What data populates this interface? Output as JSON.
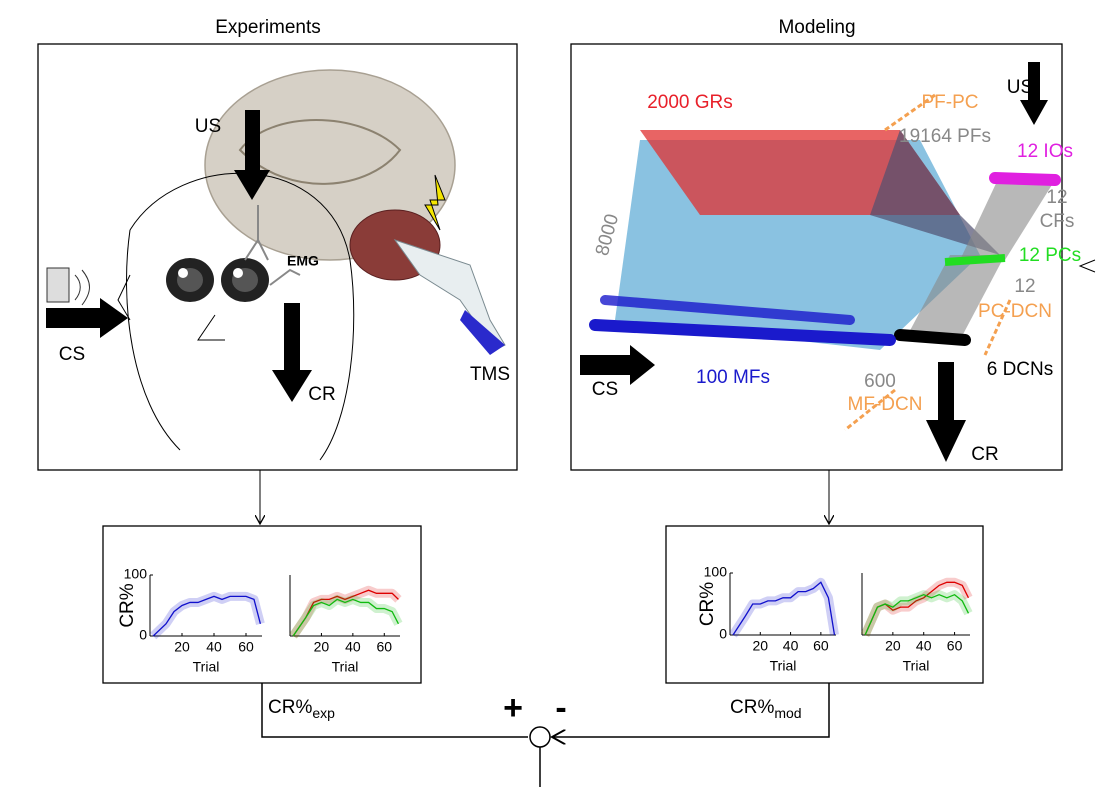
{
  "experiments": {
    "title": "Experiments",
    "us": "US",
    "cs": "CS",
    "cr": "CR",
    "emg": "EMG",
    "tms": "TMS"
  },
  "modeling": {
    "title": "Modeling",
    "labels": [
      {
        "text": "2000 GRs",
        "color": "#e8202a"
      },
      {
        "text": "PF-PC",
        "color": "#f4a050"
      },
      {
        "text": "US",
        "color": "#000000"
      },
      {
        "text": "19164 PFs",
        "color": "#888888"
      },
      {
        "text": "12 IOs",
        "color": "#e020e0"
      },
      {
        "text": "8000",
        "color": "#888888"
      },
      {
        "text": "12",
        "color": "#888888"
      },
      {
        "text": "CFs",
        "color": "#888888"
      },
      {
        "text": "12 PCs",
        "color": "#22dd22"
      },
      {
        "text": "12",
        "color": "#888888"
      },
      {
        "text": "PC-DCN",
        "color": "#f4a050"
      },
      {
        "text": "CS",
        "color": "#000000"
      },
      {
        "text": "100 MFs",
        "color": "#1a1acc"
      },
      {
        "text": "600",
        "color": "#888888"
      },
      {
        "text": "6 DCNs",
        "color": "#000000"
      },
      {
        "text": "MF-DCN",
        "color": "#f4a050"
      },
      {
        "text": "CR",
        "color": "#000000"
      }
    ]
  },
  "plots": [
    {
      "type": "line",
      "ylabel": "CR%",
      "xlabel": "Trial",
      "xlim": [
        0,
        70
      ],
      "ylim": [
        0,
        100
      ],
      "xticks": [
        20,
        40,
        60
      ],
      "yticks": [
        0,
        100
      ],
      "x": [
        2,
        10,
        15,
        20,
        25,
        30,
        35,
        40,
        45,
        50,
        55,
        60,
        65,
        69
      ],
      "series": [
        {
          "color": "#1010cc",
          "values": [
            0,
            20,
            40,
            50,
            55,
            55,
            60,
            65,
            60,
            65,
            65,
            65,
            60,
            20
          ]
        }
      ]
    },
    {
      "type": "line",
      "xlabel": "Trial",
      "xlim": [
        0,
        70
      ],
      "ylim": [
        0,
        100
      ],
      "xticks": [
        20,
        40,
        60
      ],
      "x": [
        2,
        10,
        15,
        20,
        25,
        30,
        35,
        40,
        45,
        50,
        55,
        60,
        65,
        69
      ],
      "series": [
        {
          "color": "#dd0000",
          "values": [
            0,
            30,
            55,
            60,
            60,
            65,
            60,
            65,
            70,
            75,
            70,
            70,
            70,
            60
          ]
        },
        {
          "color": "#10bb10",
          "values": [
            0,
            30,
            50,
            55,
            50,
            60,
            55,
            60,
            55,
            55,
            45,
            45,
            40,
            20
          ]
        }
      ]
    },
    {
      "type": "line",
      "ylabel": "CR%",
      "xlabel": "Trial",
      "xlim": [
        0,
        70
      ],
      "ylim": [
        0,
        100
      ],
      "xticks": [
        20,
        40,
        60
      ],
      "yticks": [
        0,
        100
      ],
      "x": [
        2,
        10,
        15,
        20,
        25,
        30,
        35,
        40,
        45,
        50,
        55,
        60,
        65,
        69
      ],
      "series": [
        {
          "color": "#1010cc",
          "values": [
            0,
            30,
            50,
            50,
            55,
            55,
            60,
            60,
            70,
            70,
            75,
            85,
            60,
            0
          ]
        }
      ]
    },
    {
      "type": "line",
      "xlabel": "Trial",
      "xlim": [
        0,
        70
      ],
      "ylim": [
        0,
        100
      ],
      "xticks": [
        20,
        40,
        60
      ],
      "x": [
        2,
        10,
        15,
        20,
        25,
        30,
        35,
        40,
        45,
        50,
        55,
        60,
        65,
        69
      ],
      "series": [
        {
          "color": "#dd0000",
          "values": [
            0,
            45,
            50,
            40,
            45,
            45,
            55,
            60,
            70,
            80,
            85,
            85,
            80,
            60
          ]
        },
        {
          "color": "#10bb10",
          "values": [
            0,
            45,
            50,
            45,
            55,
            55,
            60,
            65,
            60,
            65,
            60,
            65,
            55,
            35
          ]
        }
      ]
    }
  ],
  "signals": {
    "exp": {
      "base": "CR%",
      "sub": "exp"
    },
    "mod": {
      "base": "CR%",
      "sub": "mod"
    },
    "plus": "+",
    "minus": "-"
  }
}
